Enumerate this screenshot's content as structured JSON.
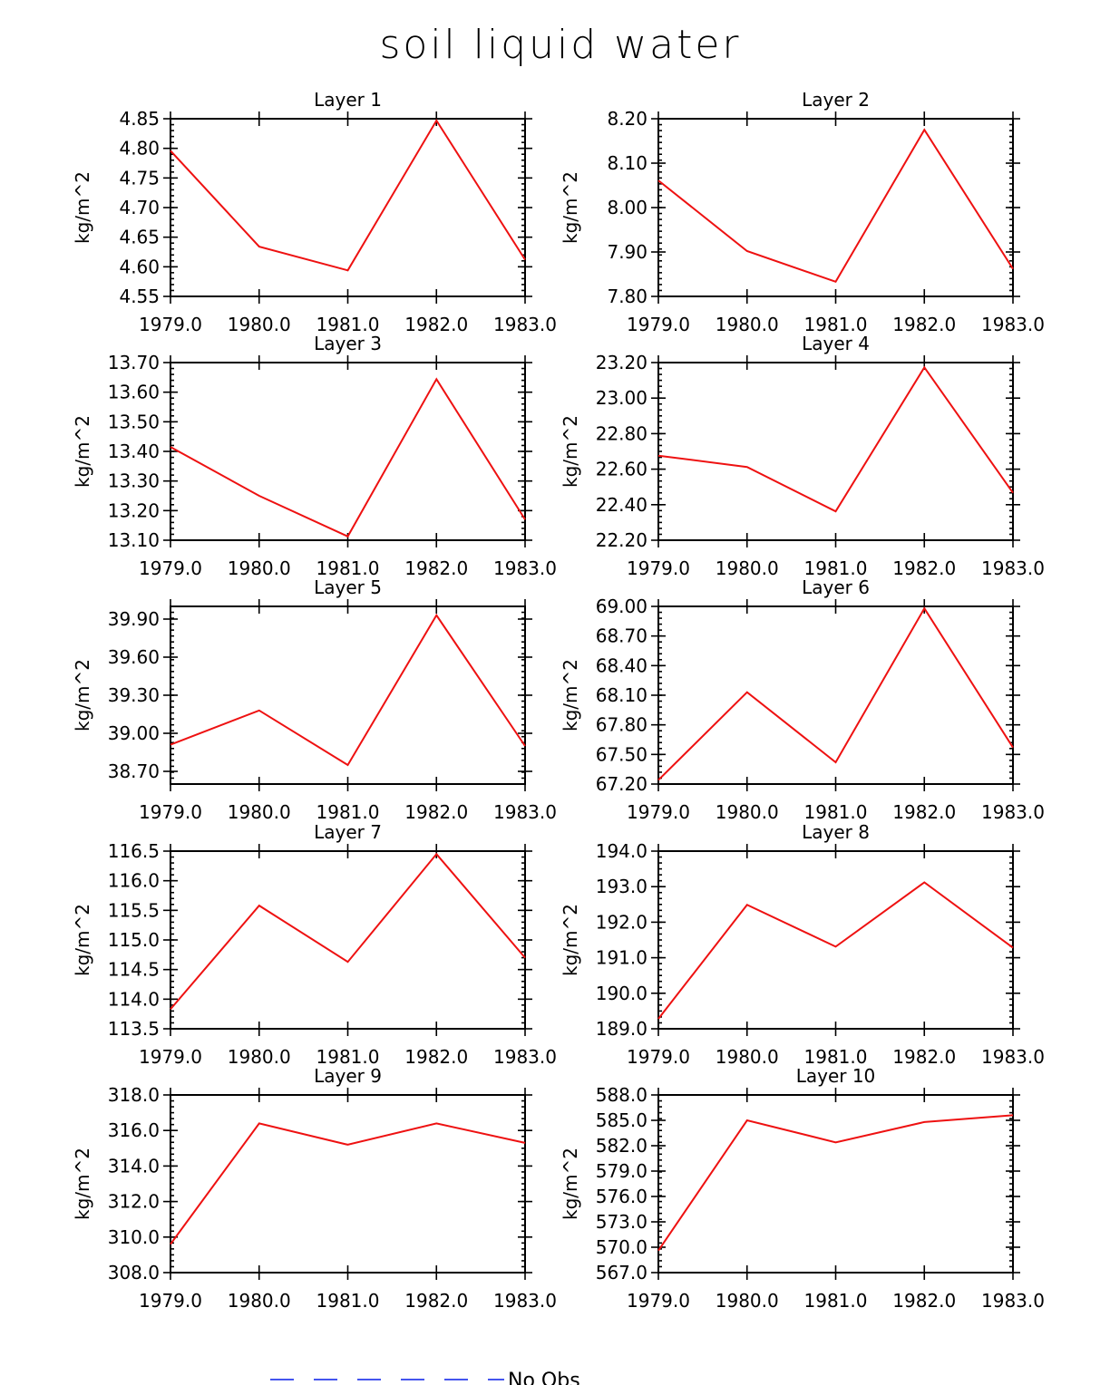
{
  "figure": {
    "title": "soil liquid water",
    "legend": {
      "label": "No Obs",
      "color": "#4455ee"
    }
  },
  "chart_data": [
    {
      "type": "line",
      "title": "Layer 1",
      "ylabel": "kg/m^2",
      "x": [
        1979,
        1980,
        1981,
        1982,
        1983
      ],
      "x_ticks": [
        "1979.0",
        "1980.0",
        "1981.0",
        "1982.0",
        "1983.0"
      ],
      "xlim": [
        1979,
        1983
      ],
      "ylim": [
        4.55,
        4.85
      ],
      "y_ticks": [
        "4.55",
        "4.60",
        "4.65",
        "4.70",
        "4.75",
        "4.80",
        "4.85"
      ],
      "series": [
        {
          "values": [
            4.796,
            4.634,
            4.594,
            4.847,
            4.612
          ],
          "color": "#ee1111"
        }
      ]
    },
    {
      "type": "line",
      "title": "Layer 2",
      "ylabel": "kg/m^2",
      "x": [
        1979,
        1980,
        1981,
        1982,
        1983
      ],
      "x_ticks": [
        "1979.0",
        "1980.0",
        "1981.0",
        "1982.0",
        "1983.0"
      ],
      "xlim": [
        1979,
        1983
      ],
      "ylim": [
        7.8,
        8.2
      ],
      "y_ticks": [
        "7.80",
        "7.90",
        "8.00",
        "8.10",
        "8.20"
      ],
      "series": [
        {
          "values": [
            8.061,
            7.902,
            7.833,
            8.175,
            7.862
          ],
          "color": "#ee1111"
        }
      ]
    },
    {
      "type": "line",
      "title": "Layer 3",
      "ylabel": "kg/m^2",
      "x": [
        1979,
        1980,
        1981,
        1982,
        1983
      ],
      "x_ticks": [
        "1979.0",
        "1980.0",
        "1981.0",
        "1982.0",
        "1983.0"
      ],
      "xlim": [
        1979,
        1983
      ],
      "ylim": [
        13.1,
        13.7
      ],
      "y_ticks": [
        "13.10",
        "13.20",
        "13.30",
        "13.40",
        "13.50",
        "13.60",
        "13.70"
      ],
      "series": [
        {
          "values": [
            13.415,
            13.25,
            13.113,
            13.644,
            13.17
          ],
          "color": "#ee1111"
        }
      ]
    },
    {
      "type": "line",
      "title": "Layer 4",
      "ylabel": "kg/m^2",
      "x": [
        1979,
        1980,
        1981,
        1982,
        1983
      ],
      "x_ticks": [
        "1979.0",
        "1980.0",
        "1981.0",
        "1982.0",
        "1983.0"
      ],
      "xlim": [
        1979,
        1983
      ],
      "ylim": [
        22.2,
        23.2
      ],
      "y_ticks": [
        "22.20",
        "22.40",
        "22.60",
        "22.80",
        "23.00",
        "23.20"
      ],
      "series": [
        {
          "values": [
            22.676,
            22.612,
            22.362,
            23.173,
            22.467
          ],
          "color": "#ee1111"
        }
      ]
    },
    {
      "type": "line",
      "title": "Layer 5",
      "ylabel": "kg/m^2",
      "x": [
        1979,
        1980,
        1981,
        1982,
        1983
      ],
      "x_ticks": [
        "1979.0",
        "1980.0",
        "1981.0",
        "1982.0",
        "1983.0"
      ],
      "xlim": [
        1979,
        1983
      ],
      "ylim": [
        38.6,
        40.0
      ],
      "y_ticks": [
        "38.70",
        "39.00",
        "39.30",
        "39.60",
        "39.90"
      ],
      "series": [
        {
          "values": [
            38.91,
            39.18,
            38.75,
            39.93,
            38.9
          ],
          "color": "#ee1111"
        }
      ]
    },
    {
      "type": "line",
      "title": "Layer 6",
      "ylabel": "kg/m^2",
      "x": [
        1979,
        1980,
        1981,
        1982,
        1983
      ],
      "x_ticks": [
        "1979.0",
        "1980.0",
        "1981.0",
        "1982.0",
        "1983.0"
      ],
      "xlim": [
        1979,
        1983
      ],
      "ylim": [
        67.2,
        69.0
      ],
      "y_ticks": [
        "67.20",
        "67.50",
        "67.80",
        "68.10",
        "68.40",
        "68.70",
        "69.00"
      ],
      "series": [
        {
          "values": [
            67.24,
            68.13,
            67.42,
            68.98,
            67.57
          ],
          "color": "#ee1111"
        }
      ]
    },
    {
      "type": "line",
      "title": "Layer 7",
      "ylabel": "kg/m^2",
      "x": [
        1979,
        1980,
        1981,
        1982,
        1983
      ],
      "x_ticks": [
        "1979.0",
        "1980.0",
        "1981.0",
        "1982.0",
        "1983.0"
      ],
      "xlim": [
        1979,
        1983
      ],
      "ylim": [
        113.5,
        116.5
      ],
      "y_ticks": [
        "113.5",
        "114.0",
        "114.5",
        "115.0",
        "115.5",
        "116.0",
        "116.5"
      ],
      "series": [
        {
          "values": [
            113.83,
            115.58,
            114.63,
            116.45,
            114.7
          ],
          "color": "#ee1111"
        }
      ]
    },
    {
      "type": "line",
      "title": "Layer 8",
      "ylabel": "kg/m^2",
      "x": [
        1979,
        1980,
        1981,
        1982,
        1983
      ],
      "x_ticks": [
        "1979.0",
        "1980.0",
        "1981.0",
        "1982.0",
        "1983.0"
      ],
      "xlim": [
        1979,
        1983
      ],
      "ylim": [
        189.0,
        194.0
      ],
      "y_ticks": [
        "189.0",
        "190.0",
        "191.0",
        "192.0",
        "193.0",
        "194.0"
      ],
      "series": [
        {
          "values": [
            189.28,
            192.49,
            191.31,
            193.12,
            191.28
          ],
          "color": "#ee1111"
        }
      ]
    },
    {
      "type": "line",
      "title": "Layer 9",
      "ylabel": "kg/m^2",
      "x": [
        1979,
        1980,
        1981,
        1982,
        1983
      ],
      "x_ticks": [
        "1979.0",
        "1980.0",
        "1981.0",
        "1982.0",
        "1983.0"
      ],
      "xlim": [
        1979,
        1983
      ],
      "ylim": [
        308.0,
        318.0
      ],
      "y_ticks": [
        "308.0",
        "310.0",
        "312.0",
        "314.0",
        "316.0",
        "318.0"
      ],
      "series": [
        {
          "values": [
            309.6,
            316.4,
            315.2,
            316.4,
            315.3
          ],
          "color": "#ee1111"
        }
      ]
    },
    {
      "type": "line",
      "title": "Layer 10",
      "ylabel": "kg/m^2",
      "x": [
        1979,
        1980,
        1981,
        1982,
        1983
      ],
      "x_ticks": [
        "1979.0",
        "1980.0",
        "1981.0",
        "1982.0",
        "1983.0"
      ],
      "xlim": [
        1979,
        1983
      ],
      "ylim": [
        567.0,
        588.0
      ],
      "y_ticks": [
        "567.0",
        "570.0",
        "573.0",
        "576.0",
        "579.0",
        "582.0",
        "585.0",
        "588.0"
      ],
      "series": [
        {
          "values": [
            569.6,
            585.0,
            582.4,
            584.8,
            585.6
          ],
          "color": "#ee1111"
        }
      ]
    }
  ]
}
